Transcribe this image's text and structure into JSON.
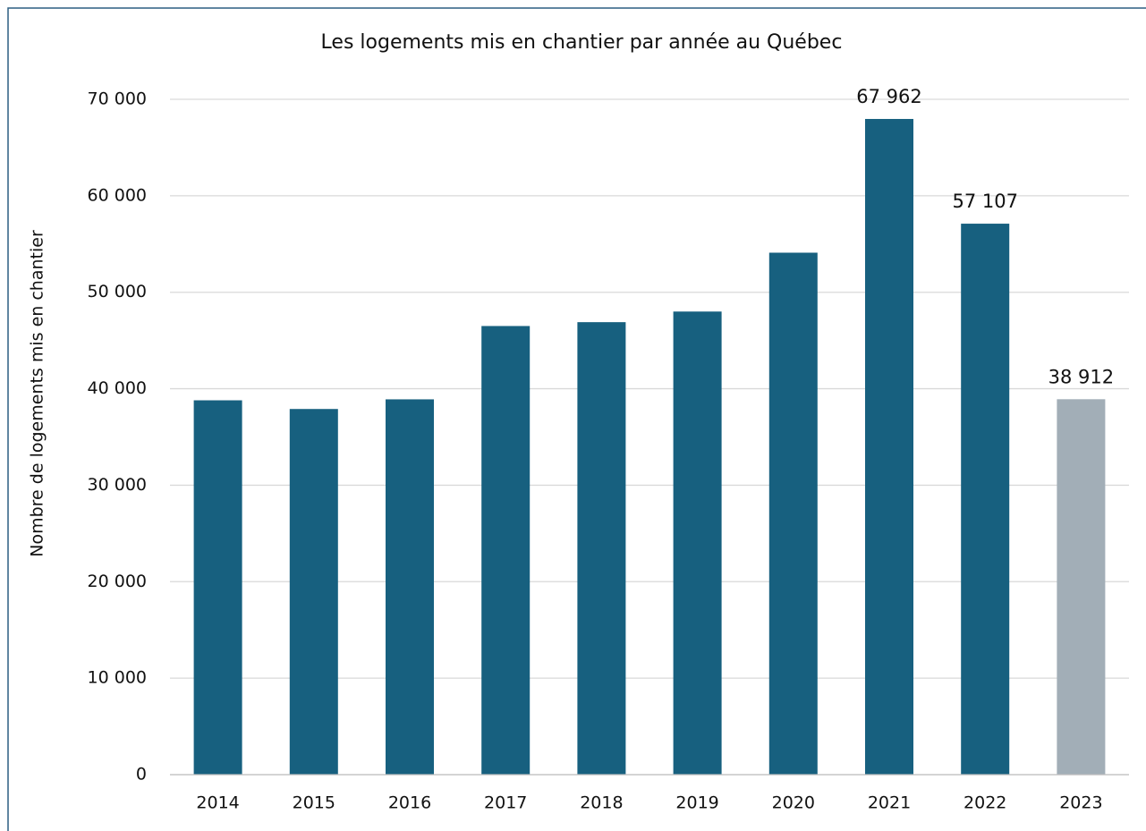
{
  "chart_data": {
    "type": "bar",
    "title": "Les logements mis en chantier par année au Québec",
    "y_label": "Nombre de logements mis en chantier",
    "categories": [
      "2014",
      "2015",
      "2016",
      "2017",
      "2018",
      "2019",
      "2020",
      "2021",
      "2022",
      "2023"
    ],
    "values": [
      38800,
      37900,
      38900,
      46500,
      46900,
      48000,
      54100,
      67962,
      57107,
      38912
    ],
    "value_labels": [
      null,
      null,
      null,
      null,
      null,
      null,
      null,
      "67 962",
      "57 107",
      "38 912"
    ],
    "colors": [
      "#17607f",
      "#17607f",
      "#17607f",
      "#17607f",
      "#17607f",
      "#17607f",
      "#17607f",
      "#17607f",
      "#17607f",
      "#a2aeb7"
    ],
    "ylim": [
      0,
      70000
    ],
    "yticks": [
      0,
      {
        "value": 10000,
        "label": "10 000"
      },
      {
        "value": 20000,
        "label": "20 000"
      },
      {
        "value": 30000,
        "label": "30 000"
      },
      {
        "value": 40000,
        "label": "40 000"
      },
      {
        "value": 50000,
        "label": "50 000"
      },
      {
        "value": 60000,
        "label": "60 000"
      },
      {
        "value": 70000,
        "label": "70 000"
      }
    ],
    "grid": true
  }
}
